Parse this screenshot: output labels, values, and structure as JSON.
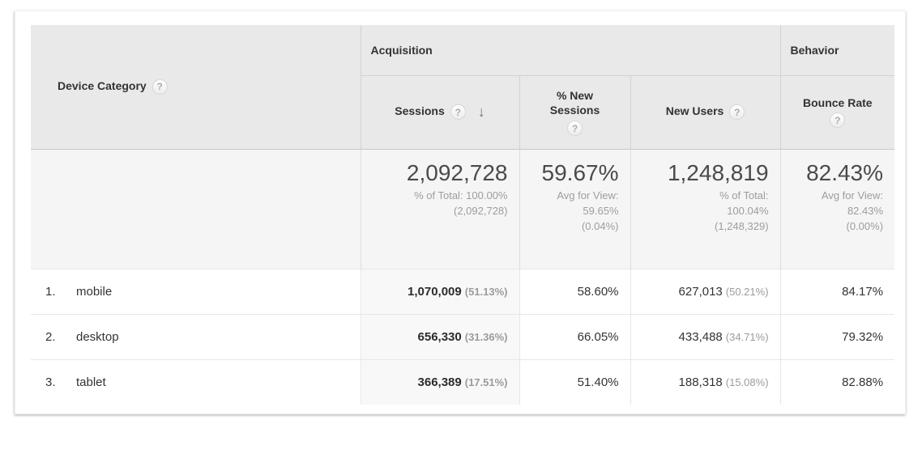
{
  "icons": {
    "help": "?",
    "sort_desc": "↓"
  },
  "table": {
    "dimension_label": "Device Category",
    "group_headers": {
      "acquisition": "Acquisition",
      "behavior": "Behavior"
    },
    "column_headers": {
      "sessions": "Sessions",
      "pct_new_sessions": "% New Sessions",
      "new_users": "New Users",
      "bounce_rate": "Bounce Rate"
    },
    "summary": {
      "sessions": {
        "value": "2,092,728",
        "sub": "% of Total: 100.00%\n(2,092,728)"
      },
      "pct_new_sessions": {
        "value": "59.67%",
        "sub": "Avg for View:\n59.65%\n(0.04%)"
      },
      "new_users": {
        "value": "1,248,819",
        "sub": "% of Total:\n100.04%\n(1,248,329)"
      },
      "bounce_rate": {
        "value": "82.43%",
        "sub": "Avg for View:\n82.43%\n(0.00%)"
      }
    },
    "rows": [
      {
        "rank": "1.",
        "name": "mobile",
        "sessions": "1,070,009",
        "sessions_share": "(51.13%)",
        "pct_new_sessions": "58.60%",
        "new_users": "627,013",
        "new_users_share": "(50.21%)",
        "bounce_rate": "84.17%"
      },
      {
        "rank": "2.",
        "name": "desktop",
        "sessions": "656,330",
        "sessions_share": "(31.36%)",
        "pct_new_sessions": "66.05%",
        "new_users": "433,488",
        "new_users_share": "(34.71%)",
        "bounce_rate": "79.32%"
      },
      {
        "rank": "3.",
        "name": "tablet",
        "sessions": "366,389",
        "sessions_share": "(17.51%)",
        "pct_new_sessions": "51.40%",
        "new_users": "188,318",
        "new_users_share": "(15.08%)",
        "bounce_rate": "82.88%"
      }
    ]
  },
  "colors": {
    "header_bg": "#e9e9e9",
    "summary_bg": "#f5f5f5",
    "sorted_column_bg": "#f8f8f8",
    "header_border": "#d2d2d2",
    "row_border": "#e7e7e7",
    "text_dark": "#333333",
    "text_grey": "#9b9b9b"
  }
}
